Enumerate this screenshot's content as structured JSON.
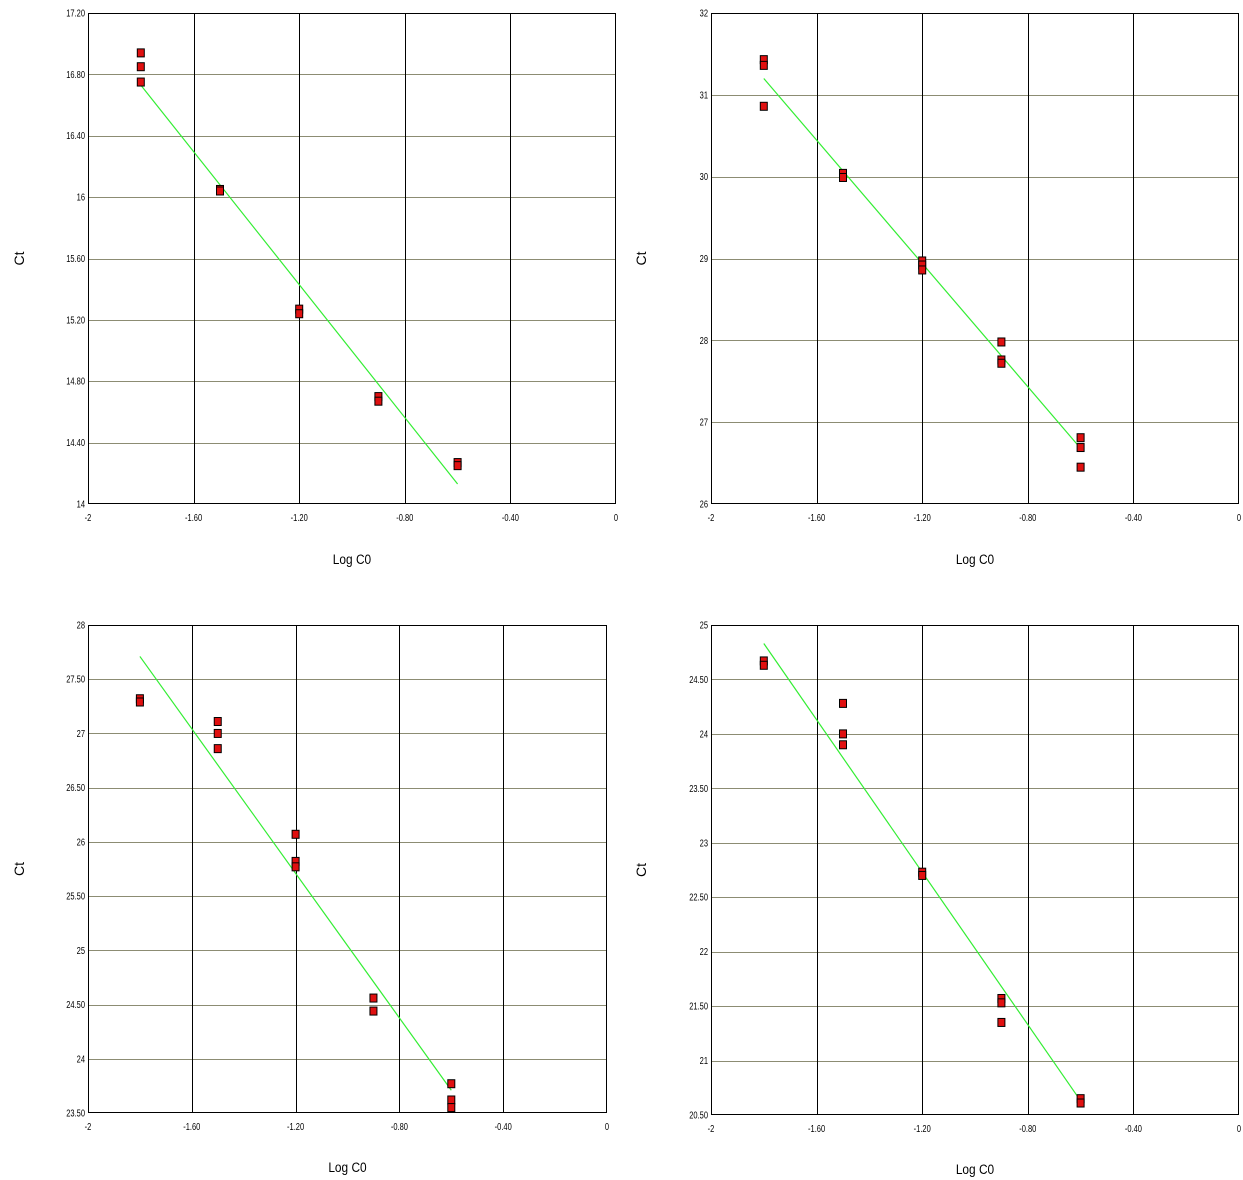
{
  "colors": {
    "background": "#ffffff",
    "plot_border": "#000000",
    "vertical_grid": "#000000",
    "horizontal_grid": "#8c8c73",
    "marker_fill": "#e01010",
    "marker_edge": "#000000",
    "fit_line": "#33ee33"
  },
  "chart_data": [
    {
      "type": "scatter",
      "xlabel": "Log C0",
      "ylabel": "Ct",
      "xlim": [
        -2,
        0
      ],
      "ylim": [
        14,
        17.2
      ],
      "grid": true,
      "x_ticks": [
        {
          "value": -2,
          "label": "-2"
        },
        {
          "value": -1.6,
          "label": "-1.60"
        },
        {
          "value": -1.2,
          "label": "-1.20"
        },
        {
          "value": -0.8,
          "label": "-0.80"
        },
        {
          "value": -0.4,
          "label": "-0.40"
        },
        {
          "value": 0,
          "label": "0"
        }
      ],
      "y_ticks": [
        {
          "value": 14,
          "label": "14"
        },
        {
          "value": 14.4,
          "label": "14.40"
        },
        {
          "value": 14.8,
          "label": "14.80"
        },
        {
          "value": 15.2,
          "label": "15.20"
        },
        {
          "value": 15.6,
          "label": "15.60"
        },
        {
          "value": 16,
          "label": "16"
        },
        {
          "value": 16.4,
          "label": "16.40"
        },
        {
          "value": 16.8,
          "label": "16.80"
        },
        {
          "value": 17.2,
          "label": "17.20"
        }
      ],
      "points": [
        {
          "x": -1.8,
          "y": 16.94
        },
        {
          "x": -1.8,
          "y": 16.85
        },
        {
          "x": -1.8,
          "y": 16.75
        },
        {
          "x": -1.5,
          "y": 16.05
        },
        {
          "x": -1.5,
          "y": 16.04
        },
        {
          "x": -1.2,
          "y": 15.27
        },
        {
          "x": -1.2,
          "y": 15.24
        },
        {
          "x": -0.9,
          "y": 14.7
        },
        {
          "x": -0.9,
          "y": 14.67
        },
        {
          "x": -0.6,
          "y": 14.27
        },
        {
          "x": -0.6,
          "y": 14.25
        }
      ],
      "fit_line": {
        "x": [
          -1.8,
          -0.6
        ],
        "y": [
          16.73,
          14.13
        ]
      }
    },
    {
      "type": "scatter",
      "xlabel": "Log C0",
      "ylabel": "Ct",
      "xlim": [
        -2,
        0
      ],
      "ylim": [
        26,
        32
      ],
      "grid": true,
      "x_ticks": [
        {
          "value": -2,
          "label": "-2"
        },
        {
          "value": -1.6,
          "label": "-1.60"
        },
        {
          "value": -1.2,
          "label": "-1.20"
        },
        {
          "value": -0.8,
          "label": "-0.80"
        },
        {
          "value": -0.4,
          "label": "-0.40"
        },
        {
          "value": 0,
          "label": "0"
        }
      ],
      "y_ticks": [
        {
          "value": 26,
          "label": "26"
        },
        {
          "value": 27,
          "label": "27"
        },
        {
          "value": 28,
          "label": "28"
        },
        {
          "value": 29,
          "label": "29"
        },
        {
          "value": 30,
          "label": "30"
        },
        {
          "value": 31,
          "label": "31"
        },
        {
          "value": 32,
          "label": "32"
        }
      ],
      "points": [
        {
          "x": -1.8,
          "y": 31.43
        },
        {
          "x": -1.8,
          "y": 31.36
        },
        {
          "x": -1.8,
          "y": 30.86
        },
        {
          "x": -1.5,
          "y": 30.04
        },
        {
          "x": -1.5,
          "y": 29.99
        },
        {
          "x": -1.2,
          "y": 28.97
        },
        {
          "x": -1.2,
          "y": 28.92
        },
        {
          "x": -1.2,
          "y": 28.86
        },
        {
          "x": -0.9,
          "y": 27.98
        },
        {
          "x": -0.9,
          "y": 27.76
        },
        {
          "x": -0.9,
          "y": 27.72
        },
        {
          "x": -0.6,
          "y": 26.81
        },
        {
          "x": -0.6,
          "y": 26.69
        },
        {
          "x": -0.6,
          "y": 26.45
        }
      ],
      "fit_line": {
        "x": [
          -1.8,
          -0.6
        ],
        "y": [
          31.2,
          26.68
        ]
      }
    },
    {
      "type": "scatter",
      "xlabel": "Log C0",
      "ylabel": "Ct",
      "xlim": [
        -2,
        0
      ],
      "ylim": [
        23.5,
        28
      ],
      "grid": true,
      "x_ticks": [
        {
          "value": -2,
          "label": "-2"
        },
        {
          "value": -1.6,
          "label": "-1.60"
        },
        {
          "value": -1.2,
          "label": "-1.20"
        },
        {
          "value": -0.8,
          "label": "-0.80"
        },
        {
          "value": -0.4,
          "label": "-0.40"
        },
        {
          "value": 0,
          "label": "0"
        }
      ],
      "y_ticks": [
        {
          "value": 23.5,
          "label": "23.50"
        },
        {
          "value": 24,
          "label": "24"
        },
        {
          "value": 24.5,
          "label": "24.50"
        },
        {
          "value": 25,
          "label": "25"
        },
        {
          "value": 25.5,
          "label": "25.50"
        },
        {
          "value": 26,
          "label": "26"
        },
        {
          "value": 26.5,
          "label": "26.50"
        },
        {
          "value": 27,
          "label": "27"
        },
        {
          "value": 27.5,
          "label": "27.50"
        },
        {
          "value": 28,
          "label": "28"
        }
      ],
      "points": [
        {
          "x": -1.8,
          "y": 27.32
        },
        {
          "x": -1.8,
          "y": 27.29
        },
        {
          "x": -1.5,
          "y": 27.11
        },
        {
          "x": -1.5,
          "y": 27.0
        },
        {
          "x": -1.5,
          "y": 26.86
        },
        {
          "x": -1.2,
          "y": 26.07
        },
        {
          "x": -1.2,
          "y": 25.82
        },
        {
          "x": -1.2,
          "y": 25.77
        },
        {
          "x": -0.9,
          "y": 24.56
        },
        {
          "x": -0.9,
          "y": 24.44
        },
        {
          "x": -0.6,
          "y": 23.77
        },
        {
          "x": -0.6,
          "y": 23.62
        },
        {
          "x": -0.6,
          "y": 23.55
        }
      ],
      "fit_line": {
        "x": [
          -1.8,
          -0.6
        ],
        "y": [
          27.71,
          23.71
        ]
      }
    },
    {
      "type": "scatter",
      "xlabel": "Log C0",
      "ylabel": "Ct",
      "xlim": [
        -2,
        0
      ],
      "ylim": [
        20.5,
        25
      ],
      "grid": true,
      "x_ticks": [
        {
          "value": -2,
          "label": "-2"
        },
        {
          "value": -1.6,
          "label": "-1.60"
        },
        {
          "value": -1.2,
          "label": "-1.20"
        },
        {
          "value": -0.8,
          "label": "-0.80"
        },
        {
          "value": -0.4,
          "label": "-0.40"
        },
        {
          "value": 0,
          "label": "0"
        }
      ],
      "y_ticks": [
        {
          "value": 20.5,
          "label": "20.50"
        },
        {
          "value": 21,
          "label": "21"
        },
        {
          "value": 21.5,
          "label": "21.50"
        },
        {
          "value": 22,
          "label": "22"
        },
        {
          "value": 22.5,
          "label": "22.50"
        },
        {
          "value": 23,
          "label": "23"
        },
        {
          "value": 23.5,
          "label": "23.50"
        },
        {
          "value": 24,
          "label": "24"
        },
        {
          "value": 24.5,
          "label": "24.50"
        },
        {
          "value": 25,
          "label": "25"
        }
      ],
      "points": [
        {
          "x": -1.8,
          "y": 24.67
        },
        {
          "x": -1.8,
          "y": 24.63
        },
        {
          "x": -1.5,
          "y": 24.28
        },
        {
          "x": -1.5,
          "y": 24.0
        },
        {
          "x": -1.5,
          "y": 23.9
        },
        {
          "x": -1.2,
          "y": 22.73
        },
        {
          "x": -1.2,
          "y": 22.7
        },
        {
          "x": -0.9,
          "y": 21.57
        },
        {
          "x": -0.9,
          "y": 21.53
        },
        {
          "x": -0.9,
          "y": 21.35
        },
        {
          "x": -0.6,
          "y": 20.65
        },
        {
          "x": -0.6,
          "y": 20.61
        }
      ],
      "fit_line": {
        "x": [
          -1.8,
          -0.6
        ],
        "y": [
          24.83,
          20.63
        ]
      }
    }
  ]
}
